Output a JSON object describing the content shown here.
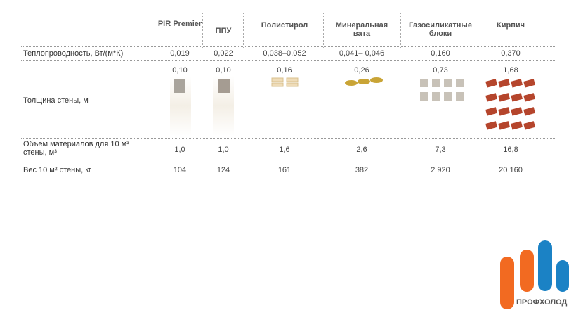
{
  "table": {
    "header": [
      "PIR Premier",
      "ППУ",
      "Полистирол",
      "Минеральная вата",
      "Газосиликатные блоки",
      "Кирпич"
    ],
    "rows": [
      {
        "label": "Теплопроводность, Вт/(м*К)",
        "cells": [
          "0,019",
          "0,022",
          "0,038–0,052",
          "0,041– 0,046",
          "0,160",
          "0,370"
        ]
      },
      {
        "label": "Толщина стены, м",
        "cells": [
          "0,10",
          "0,10",
          "0,16",
          "0,26",
          "0,73",
          "1,68"
        ]
      },
      {
        "label": "Объем материалов для 10 м³ стены, м³",
        "cells": [
          "1,0",
          "1,0",
          "1,6",
          "2,6",
          "7,3",
          "16,8"
        ]
      },
      {
        "label": "Вес 10 м² стены, кг",
        "cells": [
          "104",
          "124",
          "161",
          "382",
          "2 920",
          "20 160"
        ]
      }
    ]
  },
  "logo": {
    "text": "ПРОФХОЛОД"
  }
}
